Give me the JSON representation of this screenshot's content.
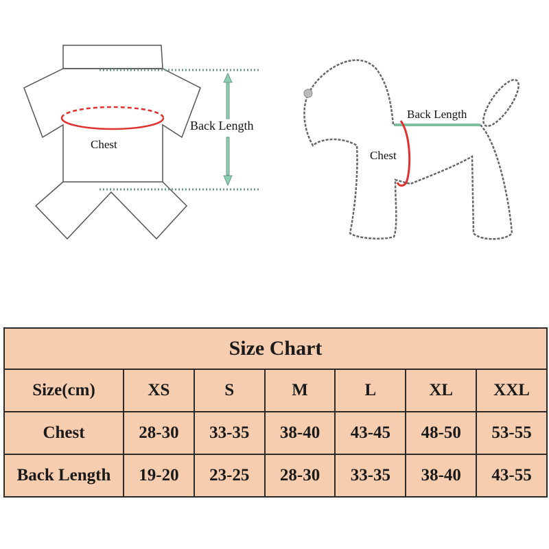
{
  "garment_diagram": {
    "chest_label": "Chest",
    "back_length_label": "Back Length"
  },
  "dog_diagram": {
    "chest_label": "Chest",
    "back_length_label": "Back Length"
  },
  "colors": {
    "table_fill": "#f7cdb0",
    "chest_line": "#e03030",
    "back_line": "#7fbf9f"
  },
  "size_chart": {
    "title": "Size Chart",
    "header": [
      "Size(cm)",
      "XS",
      "S",
      "M",
      "L",
      "XL",
      "XXL"
    ],
    "rows": [
      [
        "Chest",
        "28-30",
        "33-35",
        "38-40",
        "43-45",
        "48-50",
        "53-55"
      ],
      [
        "Back Length",
        "19-20",
        "23-25",
        "28-30",
        "33-35",
        "38-40",
        "43-55"
      ]
    ]
  }
}
